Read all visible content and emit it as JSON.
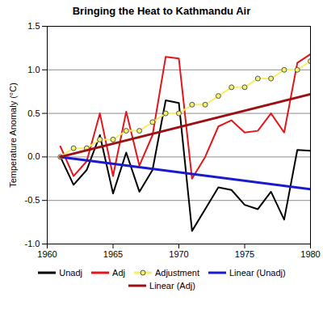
{
  "chart_data": {
    "type": "line",
    "title": "Bringing the Heat to Kathmandu Air",
    "y_label": "Temperature Anomaly (°C)",
    "xlim": [
      1960,
      1980
    ],
    "xticks": [
      1960,
      1965,
      1970,
      1975,
      1980
    ],
    "ylim": [
      -1.0,
      1.5
    ],
    "yticks": [
      {
        "value": -1.0,
        "label": "-1.0"
      },
      {
        "value": -0.5,
        "label": "-0.5"
      },
      {
        "value": 0,
        "label": "0.0"
      },
      {
        "value": 0.5,
        "label": "0.5"
      },
      {
        "value": 1.0,
        "label": "1.0"
      },
      {
        "value": 1.5,
        "label": "1.5"
      }
    ],
    "grid": true,
    "legend": "bottom",
    "series": [
      {
        "name": "Unadj",
        "color": "#000000",
        "x": [
          1961,
          1962,
          1963,
          1964,
          1965,
          1966,
          1967,
          1968,
          1969,
          1970,
          1971,
          1972,
          1973,
          1974,
          1975,
          1976,
          1977,
          1978,
          1979,
          1980
        ],
        "values": [
          0.0,
          -0.32,
          -0.15,
          0.25,
          -0.42,
          0.05,
          -0.4,
          -0.15,
          0.65,
          0.62,
          -0.85,
          -0.6,
          -0.35,
          -0.38,
          -0.55,
          -0.6,
          -0.4,
          -0.72,
          0.08,
          0.07
        ]
      },
      {
        "name": "Adj",
        "color": "#e3161c",
        "x": [
          1961,
          1962,
          1963,
          1964,
          1965,
          1966,
          1967,
          1968,
          1969,
          1970,
          1971,
          1972,
          1973,
          1974,
          1975,
          1976,
          1977,
          1978,
          1979,
          1980
        ],
        "values": [
          0.12,
          -0.22,
          -0.05,
          0.5,
          -0.22,
          0.52,
          -0.1,
          0.25,
          1.15,
          1.13,
          -0.25,
          0.0,
          0.35,
          0.42,
          0.28,
          0.3,
          0.5,
          0.28,
          1.08,
          1.18
        ]
      },
      {
        "name": "Adjustment",
        "color": "#f5f06a",
        "marker": "circle",
        "x": [
          1961,
          1962,
          1963,
          1964,
          1965,
          1966,
          1967,
          1968,
          1969,
          1970,
          1971,
          1972,
          1973,
          1974,
          1975,
          1976,
          1977,
          1978,
          1979,
          1980
        ],
        "values": [
          0.0,
          0.1,
          0.1,
          0.2,
          0.2,
          0.3,
          0.3,
          0.4,
          0.5,
          0.5,
          0.6,
          0.6,
          0.7,
          0.8,
          0.8,
          0.9,
          0.9,
          1.0,
          1.0,
          1.1
        ]
      },
      {
        "name": "Linear (Unadj)",
        "color": "#1a1ad0",
        "x": [
          1961,
          1980
        ],
        "values": [
          0.0,
          -0.37
        ]
      },
      {
        "name": "Linear (Adj)",
        "color": "#9b1010",
        "x": [
          1961,
          1980
        ],
        "values": [
          0.0,
          0.72
        ]
      }
    ]
  }
}
